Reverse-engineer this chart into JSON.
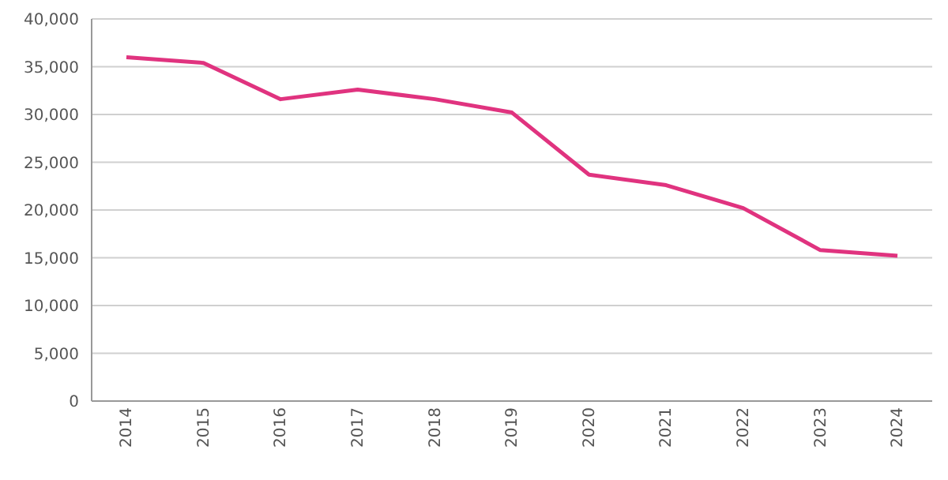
{
  "chart_data": {
    "type": "line",
    "categories": [
      "2014",
      "2015",
      "2016",
      "2017",
      "2018",
      "2019",
      "2020",
      "2021",
      "2022",
      "2023",
      "2024"
    ],
    "series": [
      {
        "color": "#e0337f",
        "values": [
          36000,
          35400,
          31600,
          32600,
          31600,
          30200,
          23700,
          22600,
          20200,
          15800,
          15200
        ]
      }
    ],
    "ylim": [
      0,
      40000
    ],
    "yticks": [
      0,
      {
        "value": 5000,
        "label": "5,000"
      },
      {
        "value": 10000,
        "label": "10,000"
      },
      {
        "value": 15000,
        "label": "15,000"
      },
      {
        "value": 20000,
        "label": "20,000"
      },
      {
        "value": 25000,
        "label": "25,000"
      },
      {
        "value": 30000,
        "label": "30,000"
      },
      {
        "value": 35000,
        "label": "35,000"
      },
      {
        "value": 40000,
        "label": "40,000"
      }
    ],
    "grid": "y",
    "legend": false,
    "marker": "none",
    "line_style": "solid"
  }
}
